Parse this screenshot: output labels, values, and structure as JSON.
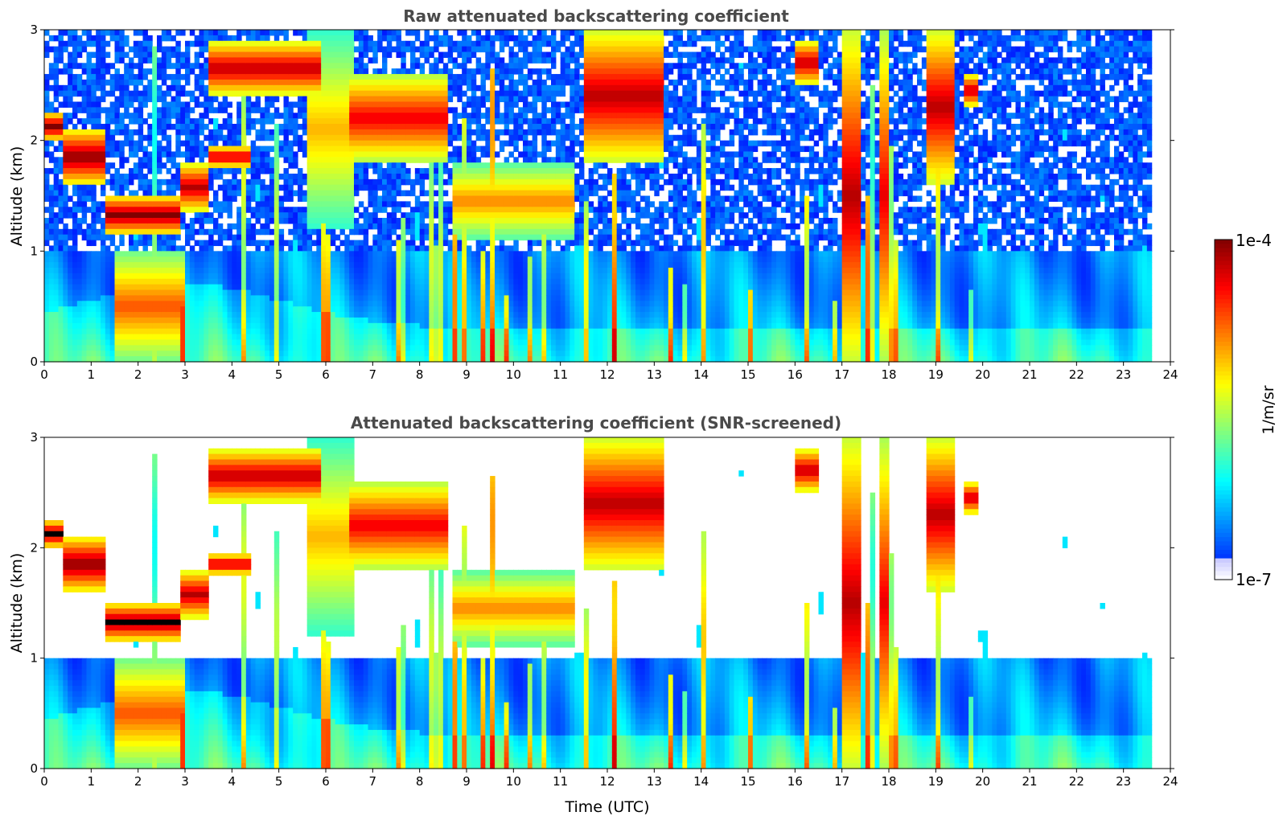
{
  "chart_data": [
    {
      "type": "heatmap",
      "title": "Raw attenuated backscattering coefficient",
      "xlabel": "",
      "ylabel": "Altitude (km)",
      "xlim": [
        0,
        24
      ],
      "ylim": [
        0,
        3
      ],
      "x_ticks": [
        "0",
        "1",
        "2",
        "3",
        "4",
        "5",
        "6",
        "7",
        "8",
        "9",
        "10",
        "11",
        "12",
        "13",
        "14",
        "15",
        "16",
        "17",
        "18",
        "19",
        "20",
        "21",
        "22",
        "23",
        "24"
      ],
      "y_ticks": [
        "0",
        "1",
        "2",
        "3"
      ],
      "data_end_time": 23.65,
      "screened": false,
      "features": [
        {
          "t0": 0.0,
          "t1": 0.4,
          "h0": 2.0,
          "h1": 2.25,
          "level": 1.0
        },
        {
          "t0": 0.4,
          "t1": 1.3,
          "h0": 1.6,
          "h1": 2.1,
          "level": 1.0
        },
        {
          "t0": 1.3,
          "t1": 2.9,
          "h0": 1.15,
          "h1": 1.5,
          "level": 1.0
        },
        {
          "t0": 2.9,
          "t1": 3.5,
          "h0": 1.35,
          "h1": 1.8,
          "level": 0.95
        },
        {
          "t0": 3.5,
          "t1": 4.4,
          "h0": 1.75,
          "h1": 1.95,
          "level": 0.95
        },
        {
          "t0": 3.5,
          "t1": 5.9,
          "h0": 2.4,
          "h1": 2.9,
          "level": 0.95
        },
        {
          "t0": 6.5,
          "t1": 8.6,
          "h0": 1.8,
          "h1": 2.6,
          "level": 0.9
        },
        {
          "t0": 11.5,
          "t1": 13.2,
          "h0": 1.8,
          "h1": 3.0,
          "level": 0.95
        },
        {
          "t0": 16.0,
          "t1": 16.5,
          "h0": 2.5,
          "h1": 2.9,
          "level": 0.95
        },
        {
          "t0": 17.0,
          "t1": 17.4,
          "h0": 0.0,
          "h1": 3.0,
          "level": 0.95
        },
        {
          "t0": 17.8,
          "t1": 18.0,
          "h0": 0.0,
          "h1": 3.0,
          "level": 0.9
        },
        {
          "t0": 18.8,
          "t1": 19.4,
          "h0": 1.6,
          "h1": 3.0,
          "level": 0.95
        },
        {
          "t0": 19.6,
          "t1": 19.9,
          "h0": 2.3,
          "h1": 2.6,
          "level": 0.95
        },
        {
          "t0": 1.5,
          "t1": 3.0,
          "h0": 0.0,
          "h1": 1.0,
          "level": 0.8
        },
        {
          "t0": 8.7,
          "t1": 11.3,
          "h0": 1.1,
          "h1": 1.8,
          "level": 0.75
        },
        {
          "t0": 5.6,
          "t1": 6.6,
          "h0": 1.2,
          "h1": 3.0,
          "level": 0.7
        }
      ]
    },
    {
      "type": "heatmap",
      "title": "Attenuated backscattering coefficient (SNR-screened)",
      "xlabel": "Time (UTC)",
      "ylabel": "Altitude (km)",
      "xlim": [
        0,
        24
      ],
      "ylim": [
        0,
        3
      ],
      "x_ticks": [
        "0",
        "1",
        "2",
        "3",
        "4",
        "5",
        "6",
        "7",
        "8",
        "9",
        "10",
        "11",
        "12",
        "13",
        "14",
        "15",
        "16",
        "17",
        "18",
        "19",
        "20",
        "21",
        "22",
        "23",
        "24"
      ],
      "y_ticks": [
        "0",
        "1",
        "2",
        "3"
      ],
      "data_end_time": 23.65,
      "screened": true
    }
  ],
  "colorbar": {
    "label": "1/m/sr",
    "max_label": "1e-4",
    "min_label": "1e-7",
    "scale": "log",
    "range": [
      1e-07,
      0.0001
    ],
    "colormap": "jet"
  }
}
